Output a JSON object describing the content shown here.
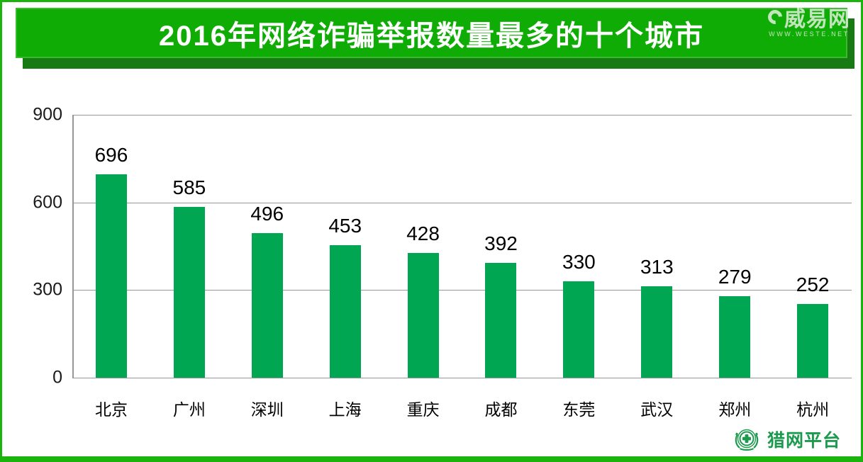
{
  "header": {
    "title": "2016年网络诈骗举报数量最多的十个城市"
  },
  "watermark": {
    "site_name": "威易网",
    "site_url": "WWW.WESTE.NET"
  },
  "footer": {
    "brand": "猎网平台"
  },
  "colors": {
    "banner_green": "#10ac06",
    "banner_edge_green": "#39bb2c",
    "banner_shadow_green": "#187a12",
    "frame_green": "#1bb40d",
    "bar_green": "#00a651",
    "brand_green": "#1b9a4d",
    "watermark_tint": "#d7ecd2",
    "gridline_gray": "#979797"
  },
  "chart_data": {
    "type": "bar",
    "title": "2016年网络诈骗举报数量最多的十个城市",
    "categories": [
      "北京",
      "广州",
      "深圳",
      "上海",
      "重庆",
      "成都",
      "东莞",
      "武汉",
      "郑州",
      "杭州"
    ],
    "values": [
      696,
      585,
      496,
      453,
      428,
      392,
      330,
      313,
      279,
      252
    ],
    "xlabel": "",
    "ylabel": "",
    "ylim": [
      0,
      900
    ],
    "yticks": [
      0,
      300,
      600,
      900
    ],
    "grid": true,
    "legend": false,
    "bar_color": "#00a651",
    "value_labels": true
  }
}
